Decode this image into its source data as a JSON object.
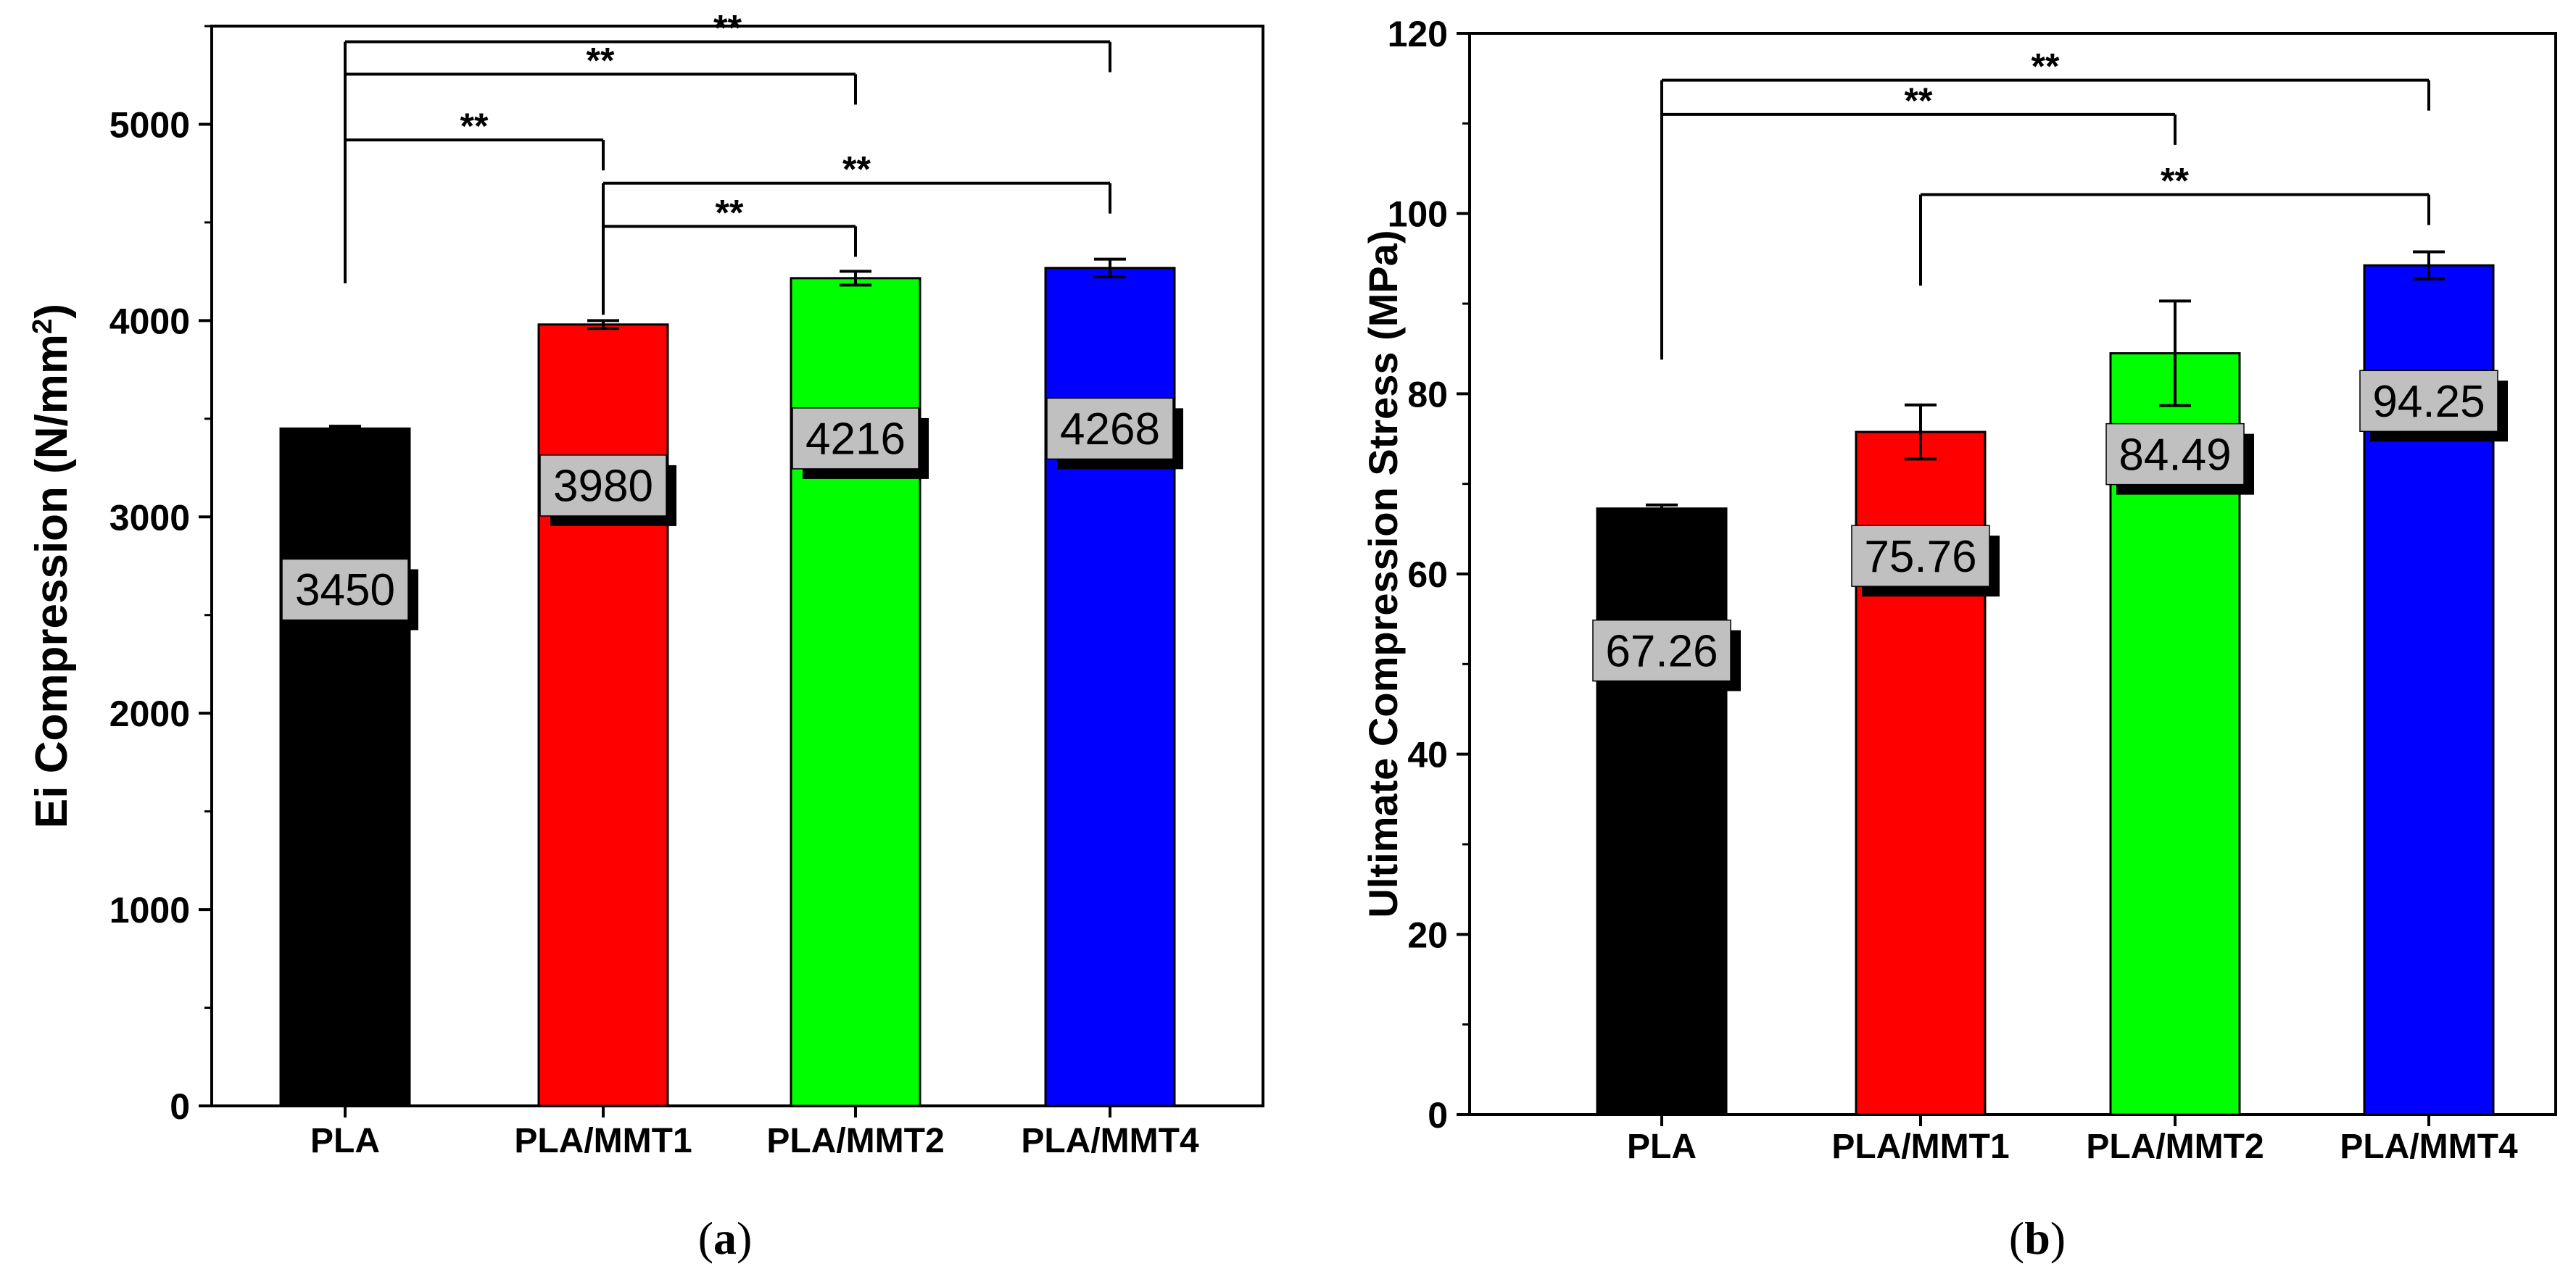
{
  "chart_data": [
    {
      "type": "bar",
      "panel_label": "a",
      "title": "",
      "xlabel": "",
      "ylabel": "Ei Compression (N/mm",
      "ylabel_superscript": "2",
      "ylabel_suffix": ")",
      "ylim": [
        0,
        5500
      ],
      "yticks": [
        0,
        1000,
        2000,
        3000,
        4000,
        5000
      ],
      "categories": [
        "PLA",
        "PLA/MMT1",
        "PLA/MMT2",
        "PLA/MMT4"
      ],
      "values": [
        3450,
        3980,
        4216,
        4268
      ],
      "value_labels": [
        "3450",
        "3980",
        "4216",
        "4268"
      ],
      "errors": [
        12,
        20,
        35,
        45
      ],
      "bar_colors": [
        "#000000",
        "#ff0000",
        "#00ff00",
        "#0000ff"
      ],
      "value_label_positions": [
        2630,
        3160,
        3400,
        3450
      ],
      "significance": [
        {
          "from": 0,
          "to": 3,
          "level": 5420,
          "label": "**"
        },
        {
          "from": 0,
          "to": 2,
          "level": 5255,
          "label": "**"
        },
        {
          "from": 0,
          "to": 1,
          "level": 4920,
          "label": "**"
        },
        {
          "from": 1,
          "to": 3,
          "level": 4700,
          "label": "**"
        },
        {
          "from": 1,
          "to": 2,
          "level": 4480,
          "label": "**"
        }
      ],
      "sig_start_levels": [
        4190,
        4030
      ]
    },
    {
      "type": "bar",
      "panel_label": "b",
      "title": "",
      "xlabel": "",
      "ylabel": "Ultimate Compression Stress (MPa)",
      "ylabel_superscript": "",
      "ylabel_suffix": "",
      "ylim": [
        0,
        120
      ],
      "yticks": [
        0,
        20,
        40,
        60,
        80,
        100,
        120
      ],
      "categories": [
        "PLA",
        "PLA/MMT1",
        "PLA/MMT2",
        "PLA/MMT4"
      ],
      "values": [
        67.26,
        75.76,
        84.49,
        94.25
      ],
      "value_labels": [
        "67.26",
        "75.76",
        "84.49",
        "94.25"
      ],
      "errors": [
        0.4,
        3.0,
        5.8,
        1.5
      ],
      "bar_colors": [
        "#000000",
        "#ff0000",
        "#00ff00",
        "#0000ff"
      ],
      "value_label_positions": [
        51.5,
        62,
        73.3,
        79.2
      ],
      "significance": [
        {
          "from": 0,
          "to": 3,
          "level": 114.8,
          "label": "**"
        },
        {
          "from": 0,
          "to": 2,
          "level": 111.0,
          "label": "**"
        },
        {
          "from": 1,
          "to": 3,
          "level": 102.1,
          "label": "**"
        }
      ],
      "sig_start_levels": [
        83.8,
        92.0
      ]
    }
  ]
}
